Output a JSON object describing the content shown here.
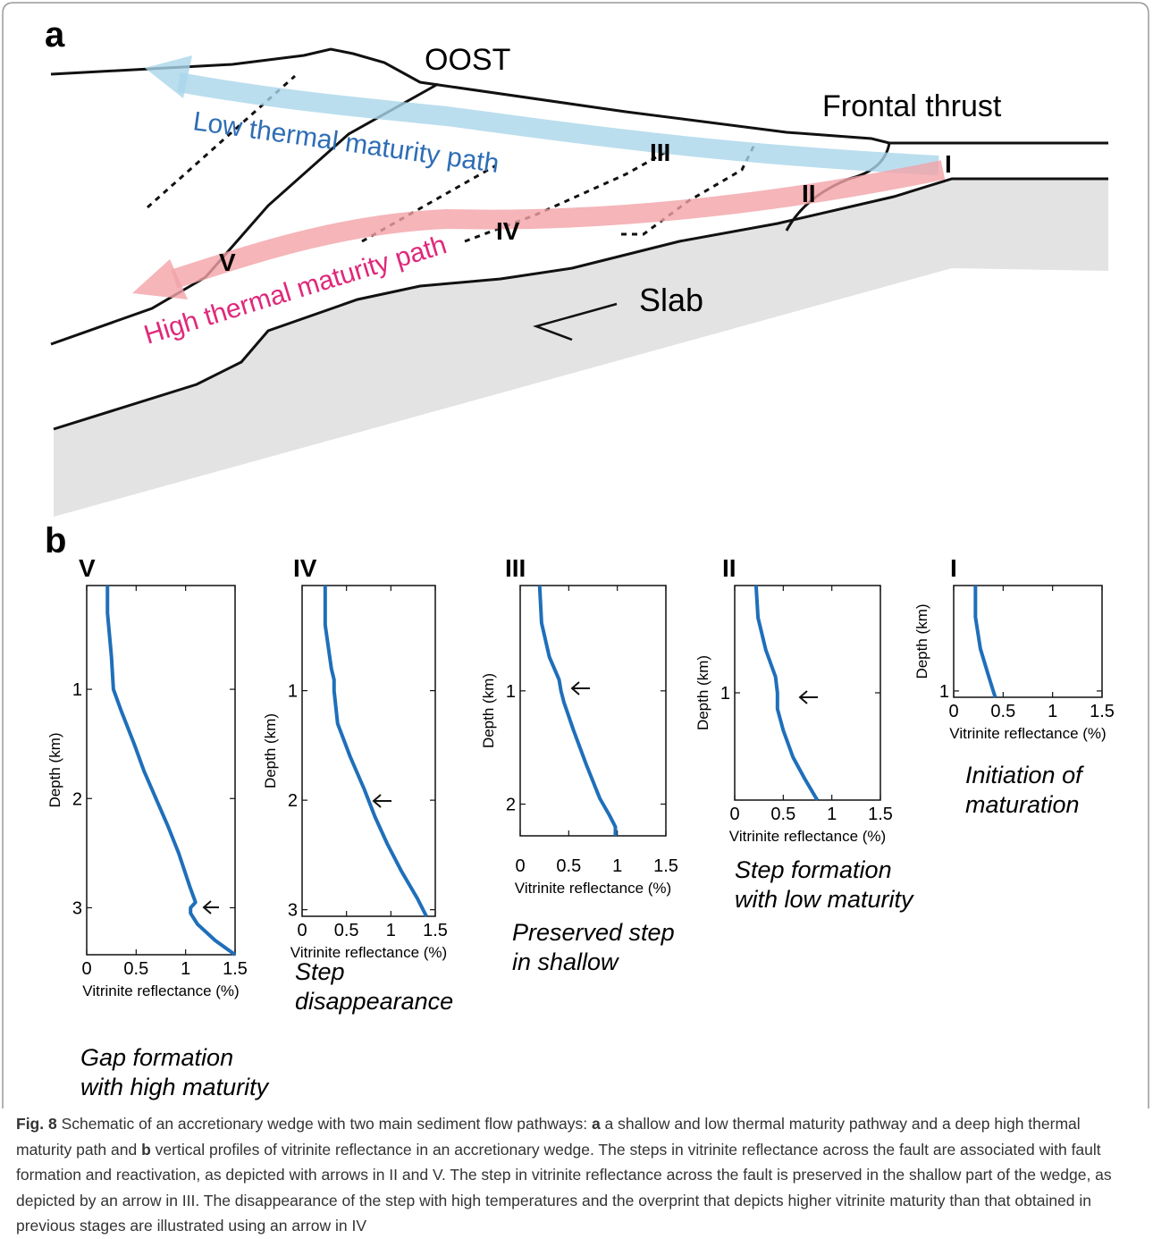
{
  "panel_a": {
    "label": "a",
    "oost": "OOST",
    "frontal_thrust": "Frontal thrust",
    "low_path": "Low thermal maturity path",
    "high_path": "High thermal maturity path",
    "slab": "Slab",
    "stages": [
      "I",
      "II",
      "III",
      "IV",
      "V"
    ]
  },
  "panel_b": {
    "label": "b"
  },
  "chart_data": [
    {
      "type": "line",
      "title": "V",
      "xlabel": "Vitrinite reflectance (%)",
      "ylabel": "Depth (km)",
      "caption": [
        "Gap formation",
        "with high maturity"
      ],
      "color": "#1f6fba",
      "y_inverted": true,
      "x": [
        0.21,
        0.21,
        0.25,
        0.27,
        0.35,
        0.48,
        0.58,
        0.7,
        0.82,
        0.93,
        1.04,
        1.1,
        1.05,
        1.05,
        1.12,
        1.3,
        1.5
      ],
      "values": [
        0.05,
        0.3,
        0.7,
        1.0,
        1.2,
        1.5,
        1.75,
        2.0,
        2.25,
        2.5,
        2.8,
        2.95,
        3.0,
        3.05,
        3.15,
        3.3,
        3.43
      ],
      "xlim": [
        0,
        1.5
      ],
      "ylim": [
        0.05,
        3.43
      ],
      "xticks": [
        0,
        0.5,
        1.0,
        1.5
      ],
      "yticks": [
        1,
        2,
        3
      ]
    },
    {
      "type": "line",
      "title": "IV",
      "xlabel": "Vitrinite reflectance (%)",
      "ylabel": "Depth (km)",
      "caption": [
        "Step",
        "disappearance"
      ],
      "color": "#1f6fba",
      "y_inverted": true,
      "x": [
        0.26,
        0.26,
        0.33,
        0.36,
        0.36,
        0.4,
        0.54,
        0.7,
        0.82,
        0.96,
        1.12,
        1.3,
        1.4
      ],
      "values": [
        0.04,
        0.4,
        0.8,
        0.9,
        1.0,
        1.3,
        1.6,
        1.9,
        2.15,
        2.4,
        2.65,
        2.9,
        3.06
      ],
      "xlim": [
        0,
        1.5
      ],
      "ylim": [
        0.04,
        3.06
      ],
      "xticks": [
        0,
        0.5,
        1.0,
        1.5
      ],
      "yticks": [
        1,
        2,
        3
      ]
    },
    {
      "type": "line",
      "title": "III",
      "xlabel": "Vitrinite reflectance (%)",
      "ylabel": "Depth (km)",
      "caption": [
        "Preserved step",
        "in shallow"
      ],
      "color": "#1f6fba",
      "y_inverted": true,
      "x": [
        0.2,
        0.22,
        0.3,
        0.4,
        0.42,
        0.45,
        0.55,
        0.68,
        0.82,
        0.92,
        0.98,
        0.98
      ],
      "values": [
        0.07,
        0.4,
        0.7,
        0.9,
        1.0,
        1.1,
        1.35,
        1.65,
        1.95,
        2.1,
        2.2,
        2.28
      ],
      "xlim": [
        0,
        1.5
      ],
      "ylim": [
        0.07,
        2.28
      ],
      "xticks": [
        0,
        0.5,
        1.0,
        1.5
      ],
      "yticks": [
        1,
        2
      ]
    },
    {
      "type": "line",
      "title": "II",
      "xlabel": "Vitrinite reflectance (%)",
      "ylabel": "Depth (km)",
      "caption": [
        "Step formation",
        "with low maturity"
      ],
      "color": "#1f6fba",
      "y_inverted": true,
      "x": [
        0.22,
        0.24,
        0.32,
        0.42,
        0.44,
        0.44,
        0.5,
        0.6,
        0.72,
        0.85
      ],
      "values": [
        0,
        0.3,
        0.6,
        0.85,
        1.0,
        1.15,
        1.35,
        1.6,
        1.8,
        2.0
      ],
      "xlim": [
        0,
        1.5
      ],
      "ylim": [
        0,
        2.0
      ],
      "xticks": [
        0,
        0.5,
        1.0,
        1.5
      ],
      "yticks": [
        1
      ]
    },
    {
      "type": "line",
      "title": "I",
      "xlabel": "Vitrinite reflectance (%)",
      "ylabel": "Depth (km)",
      "caption": [
        "Initiation of",
        "maturation"
      ],
      "color": "#1f6fba",
      "y_inverted": true,
      "x": [
        0.22,
        0.22,
        0.27,
        0.35,
        0.42
      ],
      "values": [
        0,
        0.3,
        0.6,
        0.85,
        1.06
      ],
      "xlim": [
        0,
        1.5
      ],
      "ylim": [
        0,
        1.06
      ],
      "xticks": [
        0,
        0.5,
        1.0,
        1.5
      ],
      "yticks": [
        1
      ]
    }
  ],
  "figure_caption": {
    "label": "Fig. 8",
    "text": [
      "Schematic of an accretionary wedge with two main sediment flow pathways:",
      "a",
      "a shallow and low thermal maturity pathway and a deep high thermal maturity path and",
      "b",
      "vertical profiles of vitrinite reflectance in an accretionary wedge. The steps in vitrinite reflectance across the fault are associated with fault formation and reactivation, as depicted with arrows in II and V. The step in vitrinite reflectance across the fault is preserved in the shallow part of the wedge, as depicted by an arrow in III. The disappearance of the step with high temperatures and the overprint that depicts higher vitrinite maturity than that obtained in previous stages are illustrated using an arrow in IV"
    ]
  }
}
